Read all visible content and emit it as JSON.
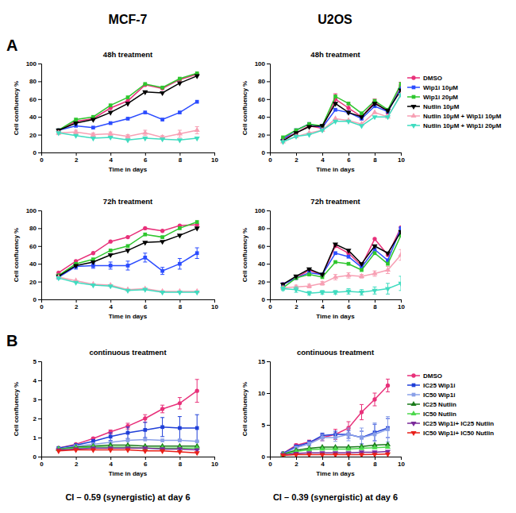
{
  "figure": {
    "columns": [
      "MCF-7",
      "U2OS"
    ],
    "panels": [
      "A",
      "B"
    ]
  },
  "chart_data": [
    {
      "type": "line",
      "title": "48h treatment",
      "xlabel": "Time in days",
      "ylabel": "Cell confluency %",
      "x": [
        1,
        2,
        3,
        4,
        5,
        6,
        7,
        8,
        9
      ],
      "xlim": [
        0,
        10
      ],
      "xticks": [
        0,
        2,
        4,
        6,
        8,
        10
      ],
      "ylim": [
        0,
        100
      ],
      "yticks": [
        0,
        20,
        40,
        60,
        80,
        100
      ],
      "series": [
        {
          "color": "#e8317a",
          "marker": "circle",
          "values": [
            25,
            35,
            38,
            50,
            58,
            76,
            72,
            82,
            88
          ]
        },
        {
          "color": "#2b4cff",
          "marker": "square",
          "values": [
            25,
            30,
            28,
            33,
            38,
            45,
            37,
            45,
            57
          ]
        },
        {
          "color": "#2ec62e",
          "marker": "square",
          "values": [
            25,
            37,
            40,
            53,
            62,
            77,
            73,
            83,
            89
          ]
        },
        {
          "color": "#000000",
          "marker": "triangle-down",
          "values": [
            25,
            33,
            37,
            45,
            55,
            68,
            67,
            78,
            86
          ]
        },
        {
          "color": "#f7a0b4",
          "marker": "triangle",
          "values": [
            22,
            23,
            20,
            21,
            18,
            22,
            17,
            21,
            25
          ],
          "errors": [
            2,
            2,
            2,
            2,
            2,
            3,
            2,
            4,
            4
          ]
        },
        {
          "color": "#40dcc0",
          "marker": "triangle-down",
          "values": [
            22,
            19,
            16,
            17,
            14,
            16,
            15,
            14,
            16
          ]
        }
      ]
    },
    {
      "type": "line",
      "title": "48h treatment",
      "xlabel": "Time in days",
      "ylabel": "Cell confluency %",
      "x": [
        1,
        2,
        3,
        4,
        5,
        6,
        7,
        8,
        9,
        10
      ],
      "xlim": [
        0,
        10
      ],
      "xticks": [
        0,
        2,
        4,
        6,
        8,
        10
      ],
      "ylim": [
        0,
        100
      ],
      "yticks": [
        0,
        20,
        40,
        60,
        80,
        100
      ],
      "legend": "right",
      "series": [
        {
          "name": "DMSO",
          "color": "#e8317a",
          "marker": "circle",
          "values": [
            15,
            22,
            30,
            27,
            60,
            50,
            40,
            57,
            45,
            75
          ],
          "errors": [
            1,
            2,
            2,
            2,
            6,
            4,
            3,
            3,
            2,
            4
          ]
        },
        {
          "name": "Wip1i 10μM",
          "color": "#2b4cff",
          "marker": "square",
          "values": [
            15,
            25,
            32,
            28,
            48,
            45,
            38,
            52,
            46,
            72
          ]
        },
        {
          "name": "Wip1i 20μM",
          "color": "#2ec62e",
          "marker": "square",
          "values": [
            17,
            25,
            32,
            30,
            63,
            55,
            44,
            58,
            48,
            77
          ]
        },
        {
          "name": "Nutlin 10μM",
          "color": "#000000",
          "marker": "triangle-down",
          "values": [
            13,
            22,
            29,
            30,
            55,
            45,
            40,
            55,
            47,
            70
          ]
        },
        {
          "name": "Nutlin 10μM + Wip1i 10μM",
          "color": "#f7a0b4",
          "marker": "triangle",
          "values": [
            12,
            18,
            22,
            25,
            38,
            36,
            32,
            45,
            40,
            65
          ]
        },
        {
          "name": "Nutlin 10μM + Wip1i 20μM",
          "color": "#40dcc0",
          "marker": "triangle-down",
          "values": [
            12,
            18,
            20,
            25,
            35,
            35,
            30,
            40,
            40,
            65
          ]
        }
      ]
    },
    {
      "type": "line",
      "title": "72h treatment",
      "xlabel": "Time in days",
      "ylabel": "Cell confluency %",
      "x": [
        1,
        2,
        3,
        4,
        5,
        6,
        7,
        8,
        9
      ],
      "xlim": [
        0,
        10
      ],
      "xticks": [
        0,
        2,
        4,
        6,
        8,
        10
      ],
      "ylim": [
        0,
        100
      ],
      "yticks": [
        0,
        20,
        40,
        60,
        80,
        100
      ],
      "series": [
        {
          "color": "#e8317a",
          "marker": "circle",
          "values": [
            30,
            43,
            52,
            65,
            70,
            80,
            77,
            83,
            84
          ]
        },
        {
          "color": "#2b4cff",
          "marker": "square",
          "values": [
            25,
            37,
            38,
            38,
            38,
            47,
            32,
            40,
            52
          ],
          "errors": [
            2,
            3,
            3,
            4,
            5,
            5,
            4,
            6,
            6
          ]
        },
        {
          "color": "#2ec62e",
          "marker": "square",
          "values": [
            27,
            40,
            45,
            55,
            60,
            73,
            70,
            80,
            87
          ]
        },
        {
          "color": "#000000",
          "marker": "triangle-down",
          "values": [
            26,
            38,
            42,
            50,
            55,
            64,
            65,
            72,
            80
          ]
        },
        {
          "color": "#f7a0b4",
          "marker": "triangle",
          "values": [
            25,
            21,
            17,
            16,
            11,
            12,
            9,
            9,
            9
          ]
        },
        {
          "color": "#40dcc0",
          "marker": "triangle-down",
          "values": [
            24,
            19,
            16,
            15,
            10,
            11,
            8,
            8,
            8
          ]
        }
      ]
    },
    {
      "type": "line",
      "title": "72h treatment",
      "xlabel": "Time in days",
      "ylabel": "Cell confluency %",
      "x": [
        1,
        2,
        3,
        4,
        5,
        6,
        7,
        8,
        9,
        10
      ],
      "xlim": [
        0,
        10
      ],
      "xticks": [
        0,
        2,
        4,
        6,
        8,
        10
      ],
      "ylim": [
        0,
        100
      ],
      "yticks": [
        0,
        20,
        40,
        60,
        80,
        100
      ],
      "series": [
        {
          "color": "#e8317a",
          "marker": "circle",
          "values": [
            17,
            24,
            33,
            27,
            60,
            52,
            38,
            68,
            50,
            81
          ]
        },
        {
          "color": "#2b4cff",
          "marker": "square",
          "values": [
            17,
            24,
            30,
            28,
            52,
            48,
            36,
            56,
            44,
            80
          ]
        },
        {
          "color": "#2ec62e",
          "marker": "square",
          "values": [
            13,
            24,
            28,
            25,
            42,
            40,
            33,
            52,
            40,
            72
          ]
        },
        {
          "color": "#000000",
          "marker": "triangle-down",
          "values": [
            17,
            26,
            34,
            28,
            62,
            55,
            40,
            60,
            52,
            76
          ]
        },
        {
          "color": "#f7a0b4",
          "marker": "triangle",
          "values": [
            13,
            14,
            15,
            18,
            25,
            27,
            26,
            29,
            33,
            50
          ],
          "errors": [
            1,
            2,
            2,
            2,
            3,
            3,
            2,
            3,
            4,
            6
          ]
        },
        {
          "color": "#40dcc0",
          "marker": "triangle-down",
          "values": [
            12,
            11,
            7,
            8,
            8,
            9,
            8,
            10,
            12,
            18
          ],
          "errors": [
            2,
            3,
            2,
            2,
            2,
            3,
            3,
            4,
            6,
            8
          ]
        }
      ]
    },
    {
      "type": "line",
      "title": "continuous treatment",
      "xlabel": "Time in days",
      "ylabel": "Cell confluency %",
      "x": [
        1,
        2,
        3,
        4,
        5,
        6,
        7,
        8,
        9
      ],
      "xlim": [
        0,
        10
      ],
      "xticks": [
        0,
        2,
        4,
        6,
        8,
        10
      ],
      "ylim": [
        0,
        5
      ],
      "yticks": [
        0,
        1,
        2,
        3,
        4,
        5
      ],
      "annotations": [
        "CI – 0.59 (synergistic) at day 6"
      ],
      "series": [
        {
          "color": "#e8317a",
          "marker": "circle",
          "values": [
            0.45,
            0.65,
            0.95,
            1.3,
            1.6,
            2.0,
            2.5,
            2.8,
            3.45
          ],
          "errors": [
            0,
            0,
            0.05,
            0.1,
            0.15,
            0.2,
            0.2,
            0.3,
            0.6
          ]
        },
        {
          "color": "#1f3fd8",
          "marker": "square",
          "values": [
            0.45,
            0.6,
            0.8,
            1.05,
            1.25,
            1.4,
            1.55,
            1.5,
            1.5
          ],
          "errors": [
            0,
            0.05,
            0.1,
            0.2,
            0.3,
            0.4,
            0.5,
            0.6,
            0.7
          ]
        },
        {
          "color": "#8aa0e8",
          "marker": "square",
          "values": [
            0.4,
            0.55,
            0.65,
            0.75,
            0.85,
            0.9,
            0.85,
            0.85,
            0.8
          ]
        },
        {
          "color": "#1a7a1a",
          "marker": "triangle",
          "values": [
            0.4,
            0.5,
            0.55,
            0.6,
            0.6,
            0.55,
            0.55,
            0.55,
            0.55
          ]
        },
        {
          "color": "#4cd84c",
          "marker": "triangle",
          "values": [
            0.4,
            0.45,
            0.5,
            0.5,
            0.5,
            0.45,
            0.45,
            0.45,
            0.45
          ]
        },
        {
          "color": "#7a2a9a",
          "marker": "triangle-down",
          "values": [
            0.35,
            0.4,
            0.45,
            0.45,
            0.45,
            0.45,
            0.4,
            0.4,
            0.35
          ]
        },
        {
          "color": "#e8201a",
          "marker": "triangle-down",
          "values": [
            0.3,
            0.35,
            0.35,
            0.35,
            0.35,
            0.3,
            0.3,
            0.25,
            0.2
          ]
        }
      ]
    },
    {
      "type": "line",
      "title": "continuous treatment",
      "xlabel": "Time in days",
      "ylabel": "Cell confluency %",
      "x": [
        1,
        2,
        3,
        4,
        5,
        6,
        7,
        8,
        9
      ],
      "xlim": [
        0,
        10
      ],
      "xticks": [
        0,
        2,
        4,
        6,
        8,
        10
      ],
      "ylim": [
        0,
        15
      ],
      "yticks": [
        0,
        5,
        10,
        15
      ],
      "legend": "right",
      "annotations": [
        "CI – 0.39 (synergistic) at day 6"
      ],
      "series": [
        {
          "name": "DMSO",
          "color": "#e8317a",
          "marker": "circle",
          "values": [
            0.5,
            1.8,
            2.3,
            3.0,
            3.5,
            4.5,
            7.0,
            9.0,
            11.2
          ],
          "errors": [
            0,
            0.2,
            0.3,
            0.5,
            0.8,
            1.0,
            1.2,
            1.0,
            1.0
          ]
        },
        {
          "name": "IC25 Wip1i",
          "color": "#1f3fd8",
          "marker": "square",
          "values": [
            0.5,
            1.6,
            2.2,
            3.3,
            3.5,
            3.5,
            3.0,
            3.8,
            4.5
          ],
          "errors": [
            0,
            0.2,
            0.3,
            0.4,
            0.5,
            0.6,
            1.0,
            1.3,
            1.5
          ]
        },
        {
          "name": "IC50 Wip1i",
          "color": "#8aa0e8",
          "marker": "square",
          "values": [
            0.4,
            1.4,
            2.0,
            3.0,
            3.0,
            3.5,
            3.0,
            3.5,
            4.3
          ],
          "errors": [
            0,
            0.2,
            0.3,
            0.5,
            0.6,
            1.0,
            1.5,
            1.8,
            2.0
          ]
        },
        {
          "name": "IC25 Nutlin",
          "color": "#1a7a1a",
          "marker": "triangle",
          "values": [
            0.4,
            1.0,
            1.3,
            1.5,
            1.5,
            1.5,
            1.6,
            1.8,
            1.9
          ]
        },
        {
          "name": "IC50 Nutlin",
          "color": "#4cd84c",
          "marker": "triangle",
          "values": [
            0.3,
            0.8,
            1.1,
            1.2,
            1.2,
            1.2,
            1.3,
            1.4,
            1.5
          ]
        },
        {
          "name": "IC25 Wip1i+ IC25 Nutlin",
          "color": "#7a2a9a",
          "marker": "triangle-down",
          "values": [
            0.3,
            0.5,
            0.6,
            0.6,
            0.6,
            0.6,
            0.7,
            0.7,
            0.8
          ]
        },
        {
          "name": "IC50 Wip1i+ IC50 Nutlin",
          "color": "#e8201a",
          "marker": "triangle-down",
          "values": [
            0.2,
            0.3,
            0.3,
            0.3,
            0.3,
            0.3,
            0.3,
            0.35,
            0.4
          ]
        }
      ]
    }
  ]
}
